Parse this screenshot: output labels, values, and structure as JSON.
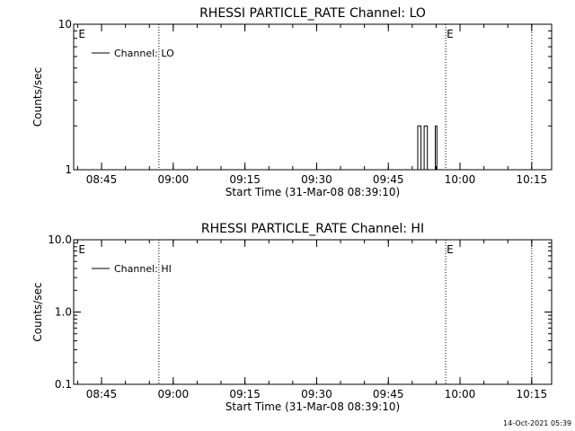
{
  "chart_data": [
    {
      "type": "line",
      "title": "RHESSI PARTICLE_RATE Channel: LO",
      "xlabel": "Start Time (31-Mar-08 08:39:10)",
      "ylabel": "Counts/sec",
      "y_scale": "log",
      "ylim": [
        1,
        10
      ],
      "y_ticks": [
        "1",
        "10"
      ],
      "x_ticks": [
        "08:45",
        "09:00",
        "09:15",
        "09:30",
        "09:45",
        "10:00",
        "10:15"
      ],
      "xlim": [
        "08:39:10",
        "10:19:10"
      ],
      "event_lines": [
        "08:57",
        "09:57",
        "10:15"
      ],
      "event_labels": [
        {
          "text": "E",
          "time": "08:40"
        },
        {
          "text": "E",
          "time": "09:57"
        }
      ],
      "legend": {
        "position": "top-left",
        "entries": [
          "Channel: LO"
        ]
      },
      "series": [
        {
          "name": "Channel: LO",
          "x": [
            "09:51:00",
            "09:51:20",
            "09:51:40",
            "09:52:00",
            "09:52:20",
            "09:52:40",
            "09:53:00",
            "09:53:20",
            "09:53:40",
            "09:54:00",
            "09:54:20",
            "09:54:40",
            "09:55:00",
            "09:55:20",
            "09:55:40",
            "09:56:00"
          ],
          "values": [
            1,
            2,
            2,
            1,
            1,
            2,
            2,
            1,
            1,
            1,
            1,
            1,
            2,
            1,
            1,
            1
          ]
        }
      ]
    },
    {
      "type": "line",
      "title": "RHESSI PARTICLE_RATE Channel: HI",
      "xlabel": "Start Time (31-Mar-08 08:39:10)",
      "ylabel": "Counts/sec",
      "y_scale": "log",
      "ylim": [
        0.1,
        10
      ],
      "y_ticks": [
        "0.1",
        "1.0",
        "10.0"
      ],
      "x_ticks": [
        "08:45",
        "09:00",
        "09:15",
        "09:30",
        "09:45",
        "10:00",
        "10:15"
      ],
      "xlim": [
        "08:39:10",
        "10:19:10"
      ],
      "event_lines": [
        "08:57",
        "09:57",
        "10:15"
      ],
      "event_labels": [
        {
          "text": "E",
          "time": "08:40"
        },
        {
          "text": "E",
          "time": "09:57"
        }
      ],
      "legend": {
        "position": "top-left",
        "entries": [
          "Channel: HI"
        ]
      },
      "series": [
        {
          "name": "Channel: HI",
          "x": [],
          "values": []
        }
      ]
    }
  ],
  "footer": {
    "timestamp": "14-Oct-2021 05:39"
  }
}
